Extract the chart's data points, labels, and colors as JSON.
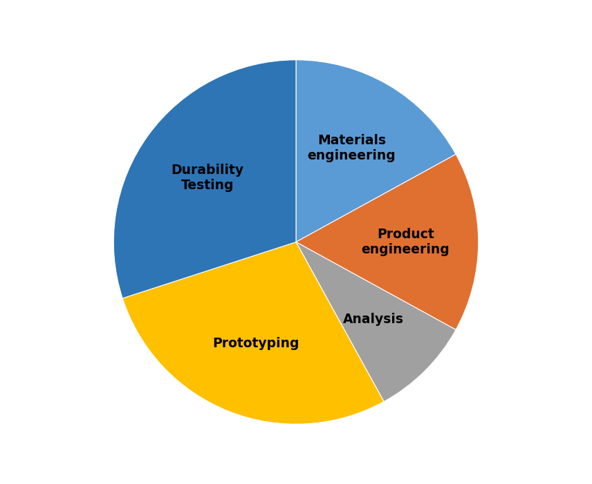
{
  "labels": [
    "Materials\nengineering",
    "Product\nengineering",
    "Analysis",
    "Prototyping",
    "Durability\nTesting"
  ],
  "sizes": [
    17,
    16,
    9,
    28,
    30
  ],
  "colors": [
    "#5B9BD5",
    "#E07030",
    "#A0A0A0",
    "#FFC000",
    "#2E75B6"
  ],
  "startangle": 90,
  "label_fontsize": 13.5,
  "label_fontweight": "bold",
  "background_color": "#ffffff",
  "figsize": [
    8.56,
    7.01
  ],
  "dpi": 100,
  "labeldistance": 0.6
}
